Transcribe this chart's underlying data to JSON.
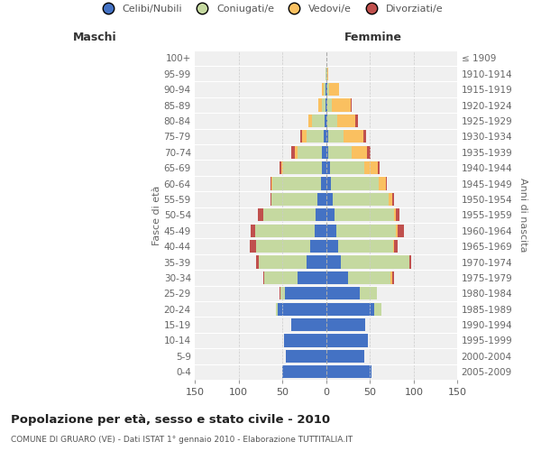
{
  "age_groups": [
    "0-4",
    "5-9",
    "10-14",
    "15-19",
    "20-24",
    "25-29",
    "30-34",
    "35-39",
    "40-44",
    "45-49",
    "50-54",
    "55-59",
    "60-64",
    "65-69",
    "70-74",
    "75-79",
    "80-84",
    "85-89",
    "90-94",
    "95-99",
    "100+"
  ],
  "birth_years": [
    "2005-2009",
    "2000-2004",
    "1995-1999",
    "1990-1994",
    "1985-1989",
    "1980-1984",
    "1975-1979",
    "1970-1974",
    "1965-1969",
    "1960-1964",
    "1955-1959",
    "1950-1954",
    "1945-1949",
    "1940-1944",
    "1935-1939",
    "1930-1934",
    "1925-1929",
    "1920-1924",
    "1915-1919",
    "1910-1914",
    "≤ 1909"
  ],
  "maschi": {
    "celibi": [
      50,
      46,
      48,
      40,
      55,
      47,
      33,
      22,
      18,
      13,
      12,
      10,
      6,
      5,
      5,
      3,
      2,
      1,
      1,
      0,
      0
    ],
    "coniugati": [
      0,
      0,
      0,
      0,
      2,
      5,
      38,
      55,
      62,
      68,
      60,
      52,
      55,
      44,
      28,
      19,
      14,
      4,
      2,
      1,
      0
    ],
    "vedovi": [
      0,
      0,
      0,
      0,
      0,
      0,
      0,
      0,
      0,
      0,
      0,
      0,
      2,
      2,
      3,
      6,
      4,
      4,
      2,
      0,
      0
    ],
    "divorziati": [
      0,
      0,
      0,
      0,
      0,
      1,
      1,
      3,
      7,
      5,
      6,
      2,
      1,
      2,
      4,
      2,
      0,
      0,
      0,
      0,
      0
    ]
  },
  "femmine": {
    "nubili": [
      52,
      44,
      48,
      45,
      55,
      38,
      25,
      17,
      14,
      12,
      10,
      8,
      5,
      4,
      2,
      2,
      1,
      1,
      1,
      0,
      0
    ],
    "coniugate": [
      0,
      0,
      0,
      0,
      8,
      20,
      48,
      78,
      62,
      68,
      68,
      63,
      55,
      40,
      27,
      18,
      12,
      5,
      2,
      1,
      0
    ],
    "vedove": [
      0,
      0,
      0,
      0,
      0,
      0,
      2,
      0,
      1,
      2,
      2,
      4,
      8,
      15,
      18,
      22,
      20,
      22,
      12,
      1,
      0
    ],
    "divorziate": [
      0,
      0,
      0,
      0,
      0,
      0,
      2,
      2,
      5,
      7,
      4,
      3,
      1,
      2,
      4,
      4,
      3,
      1,
      0,
      0,
      0
    ]
  },
  "colors": {
    "celibi": "#4472c4",
    "coniugati": "#c5d9a0",
    "vedovi": "#fac060",
    "divorziati": "#c0504d"
  },
  "xlim": 150,
  "title": "Popolazione per età, sesso e stato civile - 2010",
  "subtitle": "COMUNE DI GRUARO (VE) - Dati ISTAT 1° gennaio 2010 - Elaborazione TUTTITALIA.IT",
  "ylabel_left": "Fasce di età",
  "ylabel_right": "Anni di nascita",
  "xlabel_maschi": "Maschi",
  "xlabel_femmine": "Femmine",
  "legend_labels": [
    "Celibi/Nubili",
    "Coniugati/e",
    "Vedovi/e",
    "Divorziati/e"
  ],
  "background_color": "#ffffff",
  "plot_bg": "#f0f0f0"
}
